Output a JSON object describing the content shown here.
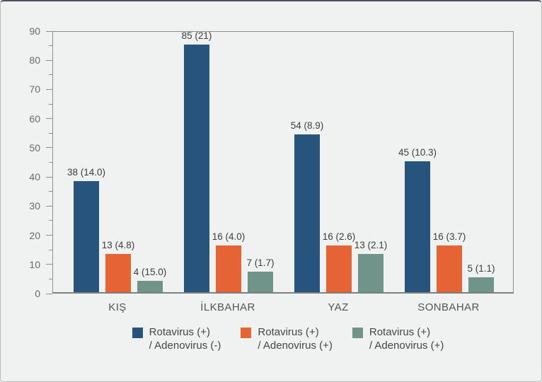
{
  "page": {
    "background": "#f0f1f1",
    "border_color": "#b9bcbe",
    "top_edge_color": "#4a545c"
  },
  "chart_data": {
    "type": "bar",
    "title": "",
    "xlabel": "",
    "ylabel": "",
    "grid": false,
    "legend_position": "bottom",
    "categories": [
      "KIŞ",
      "İLKBAHAR",
      "YAZ",
      "SONBAHAR"
    ],
    "y_axis": {
      "min": 0,
      "max": 90,
      "major_step": 10,
      "minor_step": 5,
      "tick_labels": [
        "0",
        "10",
        "20",
        "30",
        "40",
        "50",
        "60",
        "70",
        "80",
        "90"
      ]
    },
    "series": [
      {
        "name": "Rotavirus (+) / Adenovirus (-)",
        "color": "#26547c",
        "values": [
          38,
          85,
          54,
          45
        ],
        "labels": [
          "38 (14.0)",
          "85 (21)",
          "54 (8.9)",
          "45 (10.3)"
        ]
      },
      {
        "name": "Rotavirus (+) / Adenovirus (+)",
        "color": "#e56335",
        "values": [
          13,
          16,
          16,
          16
        ],
        "labels": [
          "13 (4.8)",
          "16 (4.0)",
          "16 (2.6)",
          "16 (3.7)"
        ]
      },
      {
        "name": "Rotavirus (+) / Adenovirus (+)",
        "color": "#71948a",
        "values": [
          4,
          7,
          13,
          5
        ],
        "labels": [
          "4 (15.0)",
          "7 (1.7)",
          "13 (2.1)",
          "5 (1.1)"
        ]
      }
    ],
    "legend": [
      {
        "line1": "Rotavirus (+)",
        "line2": "/ Adenovirus (-)",
        "color": "#26547c"
      },
      {
        "line1": "Rotavirus (+)",
        "line2": "/ Adenovirus (+)",
        "color": "#e56335"
      },
      {
        "line1": "Rotavirus (+)",
        "line2": "/ Adenovirus (+)",
        "color": "#71948a"
      }
    ]
  }
}
